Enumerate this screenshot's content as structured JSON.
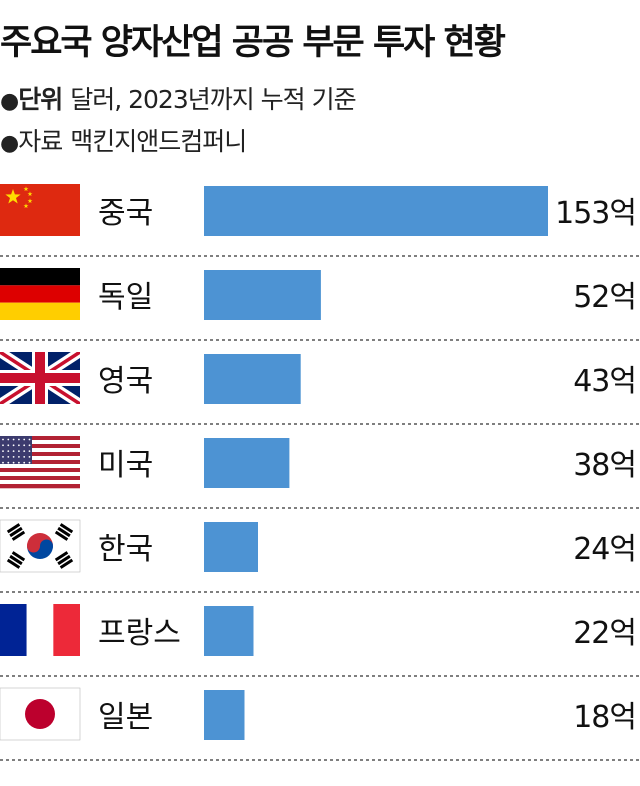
{
  "title": "주요국 양자산업 공공 부문 투자 현황",
  "meta": {
    "bullet": "●",
    "unit_key": "단위",
    "unit_value": "달러, 2023년까지 누적 기준",
    "source_key": "자료",
    "source_value": "맥킨지앤드컴퍼니"
  },
  "chart_data": {
    "type": "bar",
    "orientation": "horizontal",
    "title": "주요국 양자산업 공공 부문 투자 현황",
    "unit_label": "단위 달러, 2023년까지 누적 기준",
    "categories": [
      "중국",
      "독일",
      "영국",
      "미국",
      "한국",
      "프랑스",
      "일본"
    ],
    "values": [
      153,
      52,
      43,
      38,
      24,
      22,
      18
    ],
    "value_labels": [
      "153억",
      "52억",
      "43억",
      "38억",
      "24억",
      "22억",
      "18억"
    ],
    "flags": [
      "china-flag",
      "germany-flag",
      "uk-flag",
      "usa-flag",
      "korea-flag",
      "france-flag",
      "japan-flag"
    ],
    "bar_color": "#4d93d3",
    "xlim": [
      0,
      153
    ],
    "grid": false,
    "legend": "none"
  }
}
